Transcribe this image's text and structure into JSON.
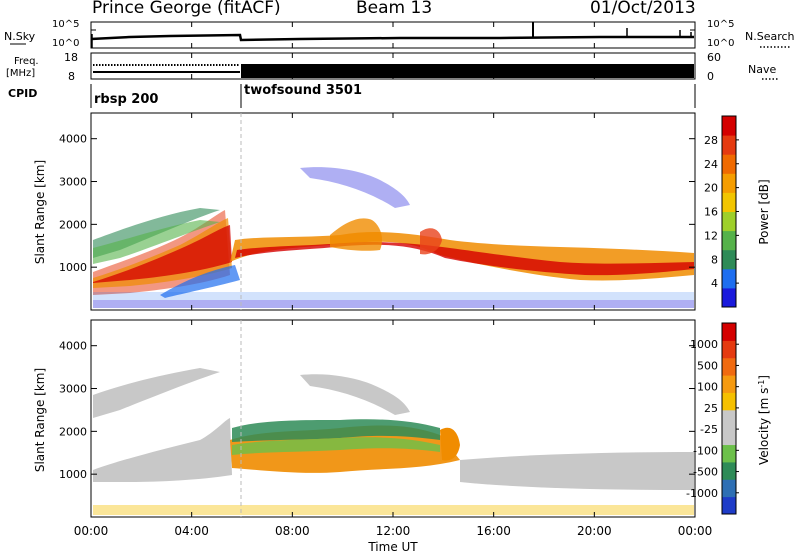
{
  "header": {
    "station": "Prince George (fitACF)",
    "beam": "Beam 13",
    "date": "01/Oct/2013"
  },
  "left_labels": {
    "nsky": "N.Sky",
    "freq": "Freq.",
    "freq_unit": "[MHz]",
    "cpid": "CPID"
  },
  "right_labels": {
    "nsearch": "N.Search",
    "nave": "Nave"
  },
  "nsky_panel": {
    "left_ticks": [
      "10^5",
      "10^0"
    ],
    "right_ticks": [
      "10^5",
      "10^0"
    ]
  },
  "freq_panel": {
    "left_ticks": [
      "18",
      "8"
    ],
    "right_ticks": [
      "60",
      "0"
    ]
  },
  "cpid_panel": {
    "segments": [
      {
        "label": "rbsp 200",
        "start_hour": 0,
        "end_hour": 6
      },
      {
        "label": "twofsound 3501",
        "start_hour": 6,
        "end_hour": 24
      }
    ]
  },
  "chart_data": [
    {
      "type": "heatmap",
      "name": "power",
      "ylabel": "Slant Range [km]",
      "ylim": [
        0,
        4600
      ],
      "yticks": [
        "1000",
        "2000",
        "3000",
        "4000"
      ],
      "colorbar": {
        "label": "Power [dB]",
        "ticks": [
          "4",
          "8",
          "12",
          "16",
          "20",
          "24",
          "28"
        ],
        "colors": [
          "#1a1adc",
          "#1e6ef0",
          "#2e8b57",
          "#55b24a",
          "#9ecf2a",
          "#f2c500",
          "#f59d00",
          "#f06a00",
          "#e53a10",
          "#d40000"
        ]
      }
    },
    {
      "type": "heatmap",
      "name": "velocity",
      "ylabel": "Slant Range [km]",
      "ylim": [
        0,
        4600
      ],
      "yticks": [
        "1000",
        "2000",
        "3000",
        "4000"
      ],
      "xlabel": "Time UT",
      "xticks": [
        "00:00",
        "04:00",
        "08:00",
        "12:00",
        "16:00",
        "20:00",
        "00:00"
      ],
      "colorbar": {
        "label": "Velocity [m s",
        "label_sup": "-1",
        "label_end": "]",
        "ticks": [
          "1000",
          "500",
          "100",
          "25",
          "-25",
          "-100",
          "-500",
          "-1000"
        ],
        "colors": [
          "#1e3cc8",
          "#2e6fb4",
          "#2e8b57",
          "#6cc04a",
          "#c8c8c8",
          "#c8c8c8",
          "#f5c000",
          "#f59a10",
          "#f06a10",
          "#e53a10",
          "#d40000"
        ]
      }
    }
  ]
}
